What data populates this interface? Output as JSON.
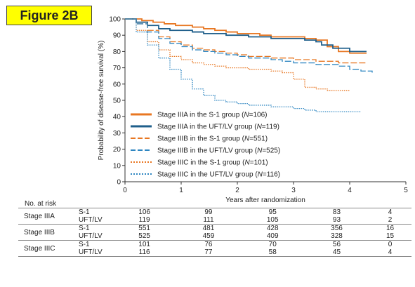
{
  "figure_label": "Figure 2B",
  "chart_data": {
    "type": "line",
    "title": "",
    "xlabel": "Years after randomization",
    "ylabel": "Probability of disease-free survival (%)",
    "xlim": [
      0,
      5
    ],
    "ylim": [
      0,
      100
    ],
    "xticks": [
      0,
      1,
      2,
      3,
      4,
      5
    ],
    "yticks": [
      0,
      10,
      20,
      30,
      40,
      50,
      60,
      70,
      80,
      90,
      100
    ],
    "grid": false,
    "legend_position": "bottom-left inside plot",
    "series": [
      {
        "name": "Stage IIIA in the S-1 group (N=106)",
        "label_prefix": "Stage IIIA in the S-1 group (",
        "label_n": "N",
        "label_suffix": "=106)",
        "color": "#e87722",
        "style": "solid",
        "x": [
          0,
          0.1,
          0.3,
          0.5,
          0.7,
          0.9,
          1.0,
          1.2,
          1.4,
          1.6,
          1.8,
          2.0,
          2.2,
          2.4,
          2.6,
          2.8,
          3.0,
          3.2,
          3.4,
          3.6,
          3.8,
          4.0,
          4.3
        ],
        "y": [
          100,
          100,
          99,
          98,
          97,
          96,
          96,
          95,
          94,
          93,
          92,
          91,
          91,
          90,
          89,
          89,
          89,
          88,
          87,
          83,
          80,
          79,
          79
        ]
      },
      {
        "name": "Stage IIIA in the UFT/LV group (N=119)",
        "label_prefix": "Stage IIIA in the UFT/LV group (",
        "label_n": "N",
        "label_suffix": "=119)",
        "color": "#1f5f8b",
        "style": "solid",
        "x": [
          0,
          0.2,
          0.4,
          0.6,
          0.8,
          1.0,
          1.2,
          1.4,
          1.6,
          1.8,
          2.0,
          2.2,
          2.4,
          2.6,
          2.8,
          3.0,
          3.2,
          3.4,
          3.5,
          3.7,
          4.0,
          4.3
        ],
        "y": [
          100,
          98,
          96,
          94,
          93,
          93,
          92,
          91,
          91,
          90,
          90,
          89,
          89,
          88,
          88,
          88,
          87,
          86,
          84,
          82,
          80,
          80
        ]
      },
      {
        "name": "Stage IIIB in the S-1 group (N=551)",
        "label_prefix": "Stage IIIB in the S-1 group (",
        "label_n": "N",
        "label_suffix": "=551)",
        "color": "#e87722",
        "style": "dashed",
        "x": [
          0,
          0.2,
          0.4,
          0.6,
          0.8,
          1.0,
          1.2,
          1.4,
          1.6,
          1.8,
          2.0,
          2.2,
          2.4,
          2.6,
          2.8,
          3.0,
          3.2,
          3.4,
          3.6,
          3.8,
          4.0,
          4.3
        ],
        "y": [
          100,
          97,
          93,
          89,
          86,
          84,
          82,
          81,
          80,
          79,
          78,
          77,
          77,
          76,
          76,
          75,
          75,
          74,
          74,
          73,
          73,
          73
        ]
      },
      {
        "name": "Stage IIIB in the UFT/LV group (N=525)",
        "label_prefix": "Stage IIIB in the UFT/LV group (",
        "label_n": "N",
        "label_suffix": "=525)",
        "color": "#2e86c1",
        "style": "dashed",
        "x": [
          0,
          0.2,
          0.4,
          0.6,
          0.8,
          1.0,
          1.2,
          1.4,
          1.6,
          1.8,
          2.0,
          2.2,
          2.4,
          2.6,
          2.8,
          3.0,
          3.2,
          3.4,
          3.6,
          3.8,
          4.0,
          4.2,
          4.4
        ],
        "y": [
          100,
          97,
          92,
          88,
          85,
          83,
          81,
          80,
          79,
          78,
          77,
          76,
          76,
          75,
          74,
          73,
          73,
          72,
          72,
          71,
          69,
          68,
          67
        ]
      },
      {
        "name": "Stage IIIC in the S-1 group (N=101)",
        "label_prefix": "Stage IIIC in the S-1 group (",
        "label_n": "N",
        "label_suffix": "=101)",
        "color": "#e87722",
        "style": "dotted",
        "x": [
          0,
          0.2,
          0.4,
          0.6,
          0.8,
          1.0,
          1.2,
          1.4,
          1.6,
          1.8,
          2.0,
          2.2,
          2.4,
          2.6,
          2.8,
          3.0,
          3.2,
          3.4,
          3.6,
          3.8,
          4.0
        ],
        "y": [
          100,
          93,
          86,
          81,
          77,
          75,
          73,
          72,
          71,
          70,
          70,
          69,
          69,
          68,
          67,
          63,
          58,
          57,
          56,
          56,
          56
        ]
      },
      {
        "name": "Stage IIIC in the UFT/LV group (N=116)",
        "label_prefix": "Stage IIIC in the UFT/LV group (",
        "label_n": "N",
        "label_suffix": "=116)",
        "color": "#2e86c1",
        "style": "dotted",
        "x": [
          0,
          0.2,
          0.4,
          0.6,
          0.8,
          1.0,
          1.2,
          1.4,
          1.6,
          1.8,
          2.0,
          2.2,
          2.4,
          2.6,
          2.8,
          3.0,
          3.2,
          3.4,
          3.6,
          3.8,
          4.0,
          4.2
        ],
        "y": [
          100,
          92,
          84,
          76,
          69,
          63,
          57,
          53,
          50,
          49,
          48,
          47,
          47,
          46,
          46,
          45,
          44,
          43,
          43,
          43,
          43,
          43
        ]
      }
    ]
  },
  "risk_table": {
    "title": "No. at risk",
    "groups": [
      {
        "stage": "Stage IIIA",
        "rows": [
          {
            "group": "S-1",
            "values": [
              "106",
              "99",
              "95",
              "83",
              "4"
            ]
          },
          {
            "group": "UFT/LV",
            "values": [
              "119",
              "111",
              "105",
              "93",
              "2"
            ]
          }
        ]
      },
      {
        "stage": "Stage IIIB",
        "rows": [
          {
            "group": "S-1",
            "values": [
              "551",
              "481",
              "428",
              "356",
              "16"
            ]
          },
          {
            "group": "UFT/LV",
            "values": [
              "525",
              "459",
              "409",
              "328",
              "15"
            ]
          }
        ]
      },
      {
        "stage": "Stage IIIC",
        "rows": [
          {
            "group": "S-1",
            "values": [
              "101",
              "76",
              "70",
              "56",
              "0"
            ]
          },
          {
            "group": "UFT/LV",
            "values": [
              "116",
              "77",
              "58",
              "45",
              "4"
            ]
          }
        ]
      }
    ]
  }
}
